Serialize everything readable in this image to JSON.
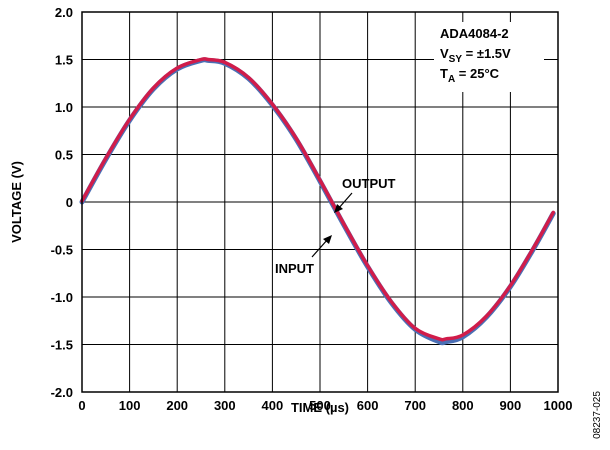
{
  "chart_data": {
    "type": "line",
    "xlabel": "TIME (µs)",
    "ylabel": "VOLTAGE (V)",
    "xlim": [
      0,
      1000
    ],
    "ylim": [
      -2.0,
      2.0
    ],
    "x_ticks": [
      "0",
      "100",
      "200",
      "300",
      "400",
      "500",
      "600",
      "700",
      "800",
      "900",
      "1000"
    ],
    "y_ticks": [
      "2.0",
      "1.5",
      "1.0",
      "0.5",
      "0",
      "-0.5",
      "-1.0",
      "-1.5",
      "-2.0"
    ],
    "grid": true,
    "annotation_box": {
      "line1": "ADA4084-2",
      "line2_main": "V",
      "line2_sub": "SY",
      "line2_rest": " = ±1.5V",
      "line3_main": "T",
      "line3_sub": "A",
      "line3_rest": " = 25°C"
    },
    "labels": {
      "output": "OUTPUT",
      "input": "INPUT"
    },
    "figure_id": "08237-025",
    "colors": {
      "input": "#4a6fb5",
      "output": "#d11c4a"
    },
    "series": [
      {
        "name": "INPUT",
        "x": [
          0,
          50,
          100,
          150,
          200,
          250,
          265,
          300,
          350,
          400,
          450,
          500,
          550,
          600,
          650,
          700,
          750,
          765,
          800,
          850,
          900,
          950,
          990
        ],
        "y": [
          0.0,
          0.45,
          0.86,
          1.19,
          1.4,
          1.49,
          1.49,
          1.46,
          1.3,
          1.02,
          0.66,
          0.22,
          -0.24,
          -0.68,
          -1.06,
          -1.34,
          -1.47,
          -1.47,
          -1.42,
          -1.21,
          -0.89,
          -0.48,
          -0.12
        ]
      },
      {
        "name": "OUTPUT",
        "x": [
          0,
          50,
          100,
          150,
          200,
          250,
          265,
          300,
          350,
          400,
          450,
          500,
          550,
          600,
          650,
          700,
          750,
          765,
          800,
          850,
          900,
          950,
          990
        ],
        "y": [
          0.01,
          0.46,
          0.87,
          1.2,
          1.41,
          1.5,
          1.5,
          1.47,
          1.31,
          1.03,
          0.67,
          0.23,
          -0.23,
          -0.67,
          -1.05,
          -1.33,
          -1.44,
          -1.44,
          -1.4,
          -1.2,
          -0.88,
          -0.47,
          -0.11
        ]
      }
    ]
  }
}
